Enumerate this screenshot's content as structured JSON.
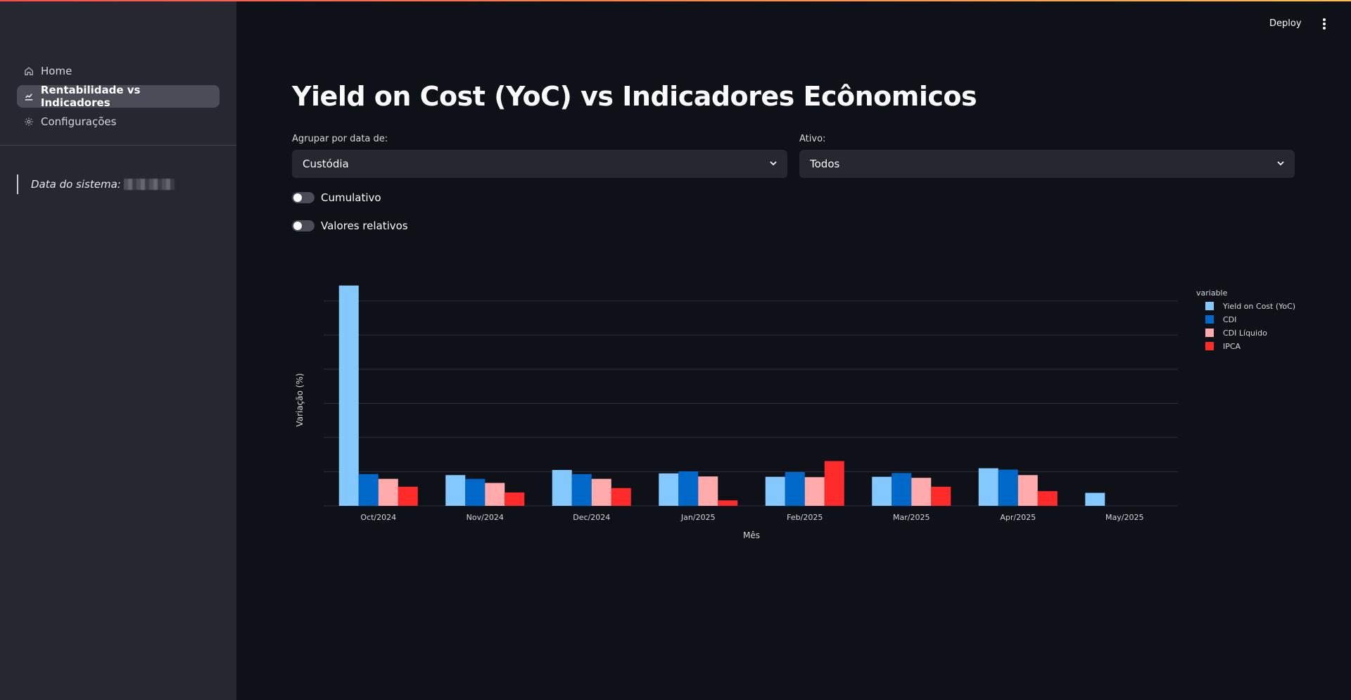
{
  "sidebar": {
    "items": [
      {
        "label": "Home",
        "icon": "home-icon",
        "active": false
      },
      {
        "label": "Rentabilidade vs Indicadores",
        "icon": "chart-icon",
        "active": true
      },
      {
        "label": "Configurações",
        "icon": "gear-icon",
        "active": false
      }
    ],
    "system_date_label": "Data do sistema:"
  },
  "header": {
    "deploy_label": "Deploy"
  },
  "main": {
    "title": "Yield on Cost (YoC) vs Indicadores Ecônomicos",
    "group_by": {
      "label": "Agrupar por data de:",
      "value": "Custódia"
    },
    "asset": {
      "label": "Ativo:",
      "value": "Todos"
    },
    "toggles": [
      {
        "label": "Cumulativo",
        "on": false
      },
      {
        "label": "Valores relativos",
        "on": false
      }
    ]
  },
  "colors": {
    "yoc": "#83c9ff",
    "cdi": "#0068c9",
    "cdi_liquido": "#ffabab",
    "ipca": "#ff2b2b",
    "accent_start": "#ff4b4b",
    "accent_end": "#ffbd45"
  },
  "chart_data": {
    "type": "bar",
    "xlabel": "Mês",
    "ylabel": "Variação (%)",
    "legend_title": "variable",
    "legend_position": "top-right",
    "grid": true,
    "categories": [
      "Oct/2024",
      "Nov/2024",
      "Dec/2024",
      "Jan/2025",
      "Feb/2025",
      "Mar/2025",
      "Apr/2025",
      "May/2025"
    ],
    "ylim": [
      0,
      6.2
    ],
    "series": [
      {
        "name": "Yield on Cost (YoC)",
        "color": "#83c9ff",
        "values": [
          6.45,
          0.9,
          1.05,
          0.95,
          0.85,
          0.85,
          1.1,
          0.38
        ]
      },
      {
        "name": "CDI",
        "color": "#0068c9",
        "values": [
          0.93,
          0.79,
          0.93,
          1.01,
          0.99,
          0.96,
          1.06,
          null
        ]
      },
      {
        "name": "CDI Líquido",
        "color": "#ffabab",
        "values": [
          0.79,
          0.67,
          0.79,
          0.86,
          0.84,
          0.82,
          0.9,
          null
        ]
      },
      {
        "name": "IPCA",
        "color": "#ff2b2b",
        "values": [
          0.56,
          0.39,
          0.52,
          0.16,
          1.31,
          0.56,
          0.43,
          null
        ]
      }
    ]
  }
}
